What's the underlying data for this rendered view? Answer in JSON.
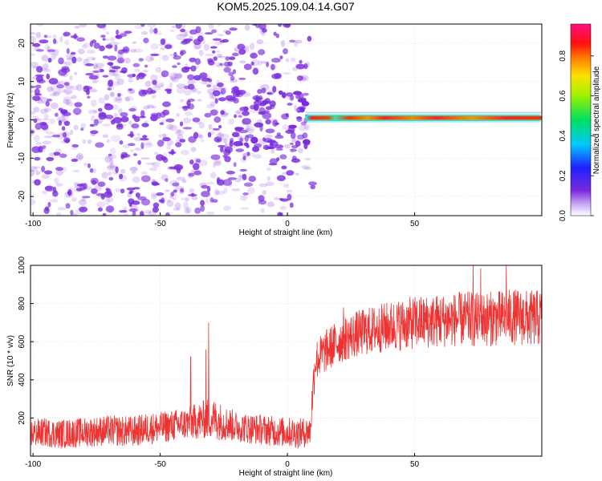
{
  "title": "KOM5.2025.109.04.14.G07",
  "colors": {
    "snr_line": "#ee3333",
    "frame": "#000000",
    "grid": "#d8d8d8",
    "cloud": "#7a2bdc"
  },
  "colorbar": {
    "label": "Normalized spectral amplitude",
    "ticks": [
      "0.0",
      "0.2",
      "0.4",
      "0.6",
      "0.8"
    ],
    "tick_values": [
      0.0,
      0.2,
      0.4,
      0.6,
      0.8
    ],
    "range": [
      0,
      0.96
    ],
    "colormap": "rainbow (purple→blue→cyan→green→yellow→orange→red→magenta)"
  },
  "chart_data": [
    {
      "type": "heatmap",
      "title": "KOM5.2025.109.04.14.G07",
      "xlabel": "Height of straight line (km)",
      "ylabel": "Frequency (Hz)",
      "xlim": [
        -101,
        100
      ],
      "ylim": [
        -25,
        25
      ],
      "xticks": [
        -100,
        -50,
        0,
        50
      ],
      "xtick_labels": [
        "-100",
        "-50",
        "0",
        "50"
      ],
      "yticks": [
        -20,
        -10,
        0,
        10,
        20
      ],
      "ytick_labels": [
        "-20",
        "-10",
        "0",
        "10",
        "20"
      ],
      "grid": true,
      "features": [
        {
          "kind": "noise",
          "x_range": [
            -101,
            10
          ],
          "f_range": [
            -25,
            25
          ],
          "amplitude": 0.1
        },
        {
          "kind": "cluster",
          "x_range": [
            -22,
            8
          ],
          "f_range": [
            -8,
            8
          ],
          "amplitude": 0.15
        },
        {
          "kind": "ridge",
          "x_range": [
            7,
            100
          ],
          "frequency": 0.5,
          "amplitude": [
            0.6,
            0.95
          ]
        }
      ]
    },
    {
      "type": "line",
      "xlabel": "Height of straight line (km)",
      "ylabel": "SNR (10 * v/v)",
      "xlim": [
        -101,
        100
      ],
      "ylim": [
        0,
        1000
      ],
      "xticks": [
        -100,
        -50,
        0,
        50
      ],
      "xtick_labels": [
        "-100",
        "-50",
        "0",
        "50"
      ],
      "yticks": [
        200,
        400,
        600,
        800,
        1000
      ],
      "ytick_labels": [
        "200",
        "400",
        "600",
        "800",
        "1000"
      ],
      "grid": true,
      "series": [
        {
          "points": [
            [
              -100,
              120
            ],
            [
              -95,
              125
            ],
            [
              -90,
              115
            ],
            [
              -85,
              120
            ],
            [
              -80,
              125
            ],
            [
              -75,
              130
            ],
            [
              -70,
              135
            ],
            [
              -65,
              130
            ],
            [
              -60,
              130
            ],
            [
              -55,
              145
            ],
            [
              -50,
              150
            ],
            [
              -45,
              160
            ],
            [
              -40,
              170
            ],
            [
              -35,
              185
            ],
            [
              -30,
              200
            ],
            [
              -25,
              175
            ],
            [
              -20,
              155
            ],
            [
              -15,
              145
            ],
            [
              -10,
              140
            ],
            [
              -5,
              130
            ],
            [
              0,
              125
            ],
            [
              5,
              120
            ],
            [
              9,
              130
            ],
            [
              10,
              350
            ],
            [
              11,
              500
            ],
            [
              15,
              550
            ],
            [
              20,
              600
            ],
            [
              25,
              630
            ],
            [
              30,
              650
            ],
            [
              35,
              665
            ],
            [
              40,
              680
            ],
            [
              45,
              690
            ],
            [
              50,
              700
            ],
            [
              55,
              705
            ],
            [
              60,
              710
            ],
            [
              65,
              715
            ],
            [
              70,
              720
            ],
            [
              75,
              715
            ],
            [
              80,
              720
            ],
            [
              85,
              725
            ],
            [
              90,
              730
            ],
            [
              95,
              720
            ],
            [
              100,
              725
            ]
          ],
          "noise_amplitude": [
            [
              -100,
              75
            ],
            [
              -40,
              85
            ],
            [
              -30,
              110
            ],
            [
              -20,
              80
            ],
            [
              9,
              80
            ],
            [
              10,
              110
            ],
            [
              50,
              140
            ],
            [
              100,
              150
            ]
          ],
          "spikes": [
            [
              -31,
              700
            ],
            [
              -32,
              560
            ],
            [
              -38,
              520
            ],
            [
              22,
              780
            ],
            [
              73,
              1000
            ],
            [
              76,
              985
            ],
            [
              86,
              1000
            ]
          ]
        }
      ]
    }
  ]
}
